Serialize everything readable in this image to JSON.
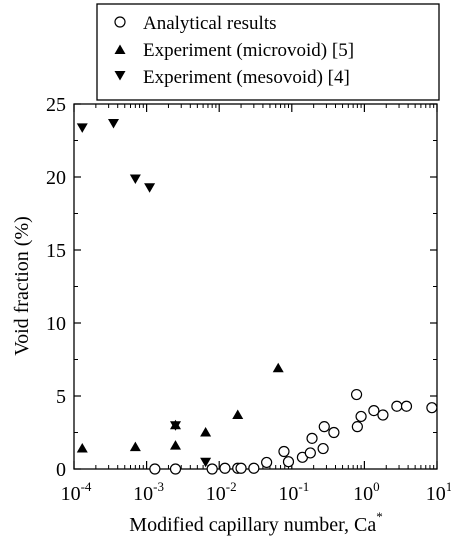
{
  "chart_data": {
    "type": "scatter",
    "title": "",
    "xlabel": {
      "text": "Modified capillary number, Ca",
      "superscript": "*"
    },
    "ylabel": "Void fraction (%)",
    "xscale": "log",
    "xlim": [
      0.0001,
      10
    ],
    "ylim": [
      0,
      25
    ],
    "x_ticks": [
      {
        "base": "10",
        "exp": "-4"
      },
      {
        "base": "10",
        "exp": "-3"
      },
      {
        "base": "10",
        "exp": "-2"
      },
      {
        "base": "10",
        "exp": "-1"
      },
      {
        "base": "10",
        "exp": "0"
      },
      {
        "base": "10",
        "exp": "1"
      }
    ],
    "y_ticks": [
      "0",
      "5",
      "10",
      "15",
      "20",
      "25"
    ],
    "grid": false,
    "legend_position": "top-center, above plot",
    "series": [
      {
        "name": "Analytical results",
        "marker": "circle-open",
        "points": [
          [
            0.0013,
            0.0
          ],
          [
            0.0025,
            0.0
          ],
          [
            0.008,
            0.0
          ],
          [
            0.012,
            0.05
          ],
          [
            0.018,
            0.05
          ],
          [
            0.02,
            0.05
          ],
          [
            0.03,
            0.05
          ],
          [
            0.045,
            0.45
          ],
          [
            0.078,
            1.2
          ],
          [
            0.09,
            0.5
          ],
          [
            0.14,
            0.8
          ],
          [
            0.18,
            1.1
          ],
          [
            0.19,
            2.1
          ],
          [
            0.27,
            1.4
          ],
          [
            0.28,
            2.9
          ],
          [
            0.38,
            2.5
          ],
          [
            0.78,
            5.1
          ],
          [
            0.8,
            2.9
          ],
          [
            0.9,
            3.6
          ],
          [
            1.35,
            4.0
          ],
          [
            1.8,
            3.7
          ],
          [
            2.8,
            4.3
          ],
          [
            3.8,
            4.3
          ],
          [
            8.5,
            4.2
          ]
        ]
      },
      {
        "name": "Experiment (microvoid) [5]",
        "marker": "triangle-up",
        "points": [
          [
            0.00013,
            1.4
          ],
          [
            0.0007,
            1.5
          ],
          [
            0.0025,
            1.6
          ],
          [
            0.0025,
            3.0
          ],
          [
            0.0065,
            2.5
          ],
          [
            0.018,
            3.7
          ],
          [
            0.065,
            6.9
          ]
        ]
      },
      {
        "name": "Experiment (mesovoid) [4]",
        "marker": "triangle-down",
        "points": [
          [
            0.00013,
            23.4
          ],
          [
            0.00035,
            23.7
          ],
          [
            0.0007,
            19.9
          ],
          [
            0.0011,
            19.3
          ],
          [
            0.0025,
            3.0
          ],
          [
            0.0065,
            0.5
          ]
        ]
      }
    ]
  }
}
